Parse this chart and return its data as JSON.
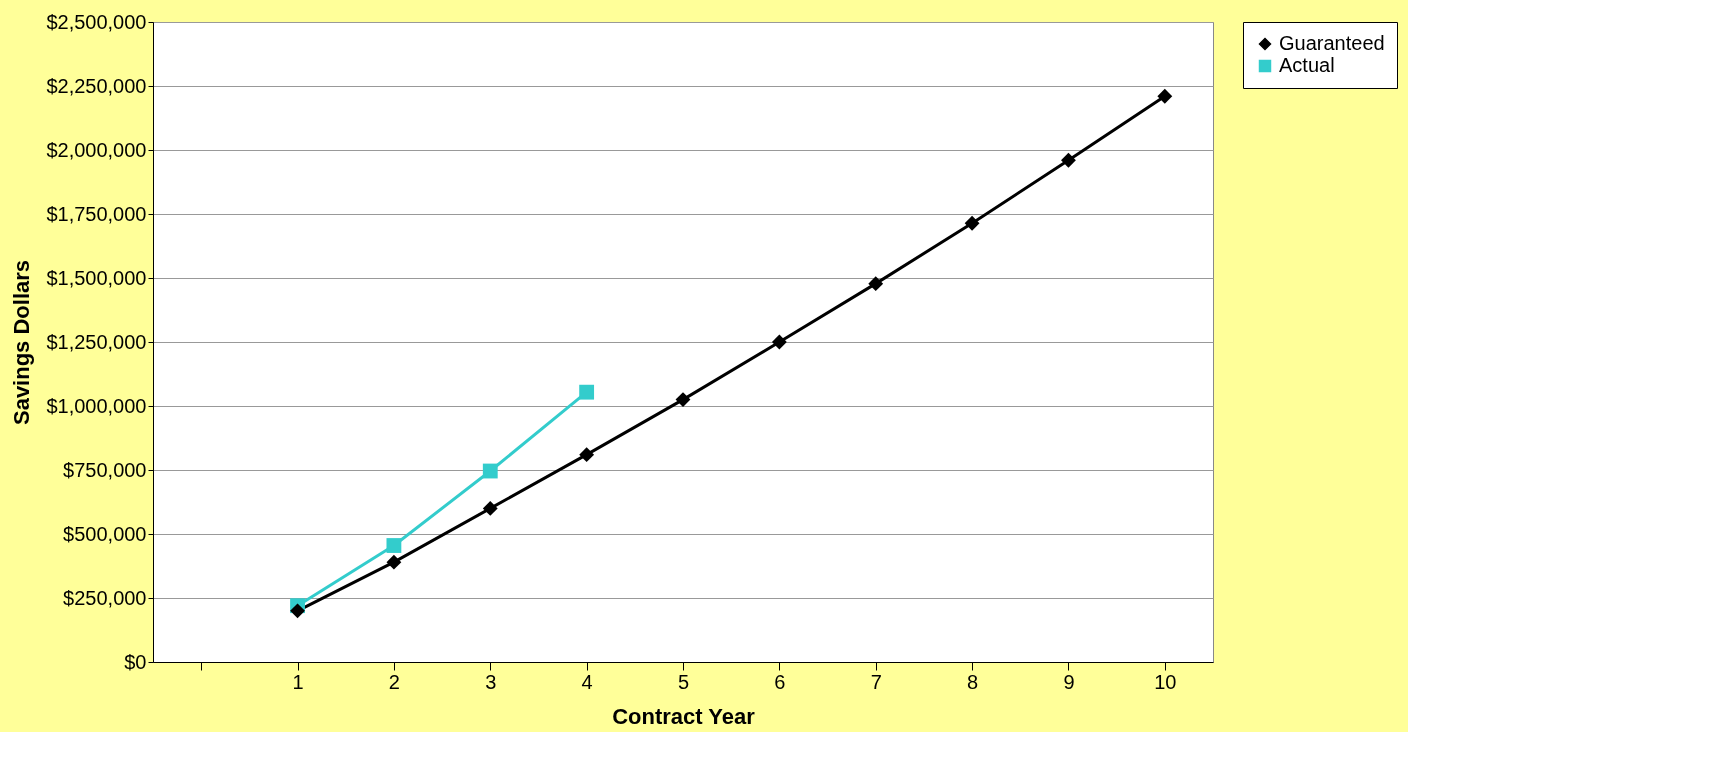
{
  "chart_data": {
    "type": "line",
    "xlabel": "Contract Year",
    "ylabel": "Savings Dollars",
    "categories": [
      null,
      "1",
      "2",
      "3",
      "4",
      "5",
      "6",
      "7",
      "8",
      "9",
      "10"
    ],
    "series": [
      {
        "name": "Guaranteed",
        "color": "#000000",
        "marker": "diamond",
        "values": [
          null,
          200000,
          390000,
          600000,
          810000,
          1025000,
          1250000,
          1478000,
          1714000,
          1960000,
          2210000
        ]
      },
      {
        "name": "Actual",
        "color": "#33cccc",
        "marker": "square",
        "values": [
          null,
          220000,
          455000,
          746000,
          1054000,
          null,
          null,
          null,
          null,
          null,
          null
        ]
      }
    ],
    "ylim": [
      0,
      2500000
    ],
    "yticks": [
      {
        "value": 0,
        "label": "$0"
      },
      {
        "value": 250000,
        "label": "$250,000"
      },
      {
        "value": 500000,
        "label": "$500,000"
      },
      {
        "value": 750000,
        "label": "$750,000"
      },
      {
        "value": 1000000,
        "label": "$1,000,000"
      },
      {
        "value": 1250000,
        "label": "$1,250,000"
      },
      {
        "value": 1500000,
        "label": "$1,500,000"
      },
      {
        "value": 1750000,
        "label": "$1,750,000"
      },
      {
        "value": 2000000,
        "label": "$2,000,000"
      },
      {
        "value": 2250000,
        "label": "$2,250,000"
      },
      {
        "value": 2500000,
        "label": "$2,500,000"
      }
    ],
    "grid": "y",
    "legend": "right"
  }
}
